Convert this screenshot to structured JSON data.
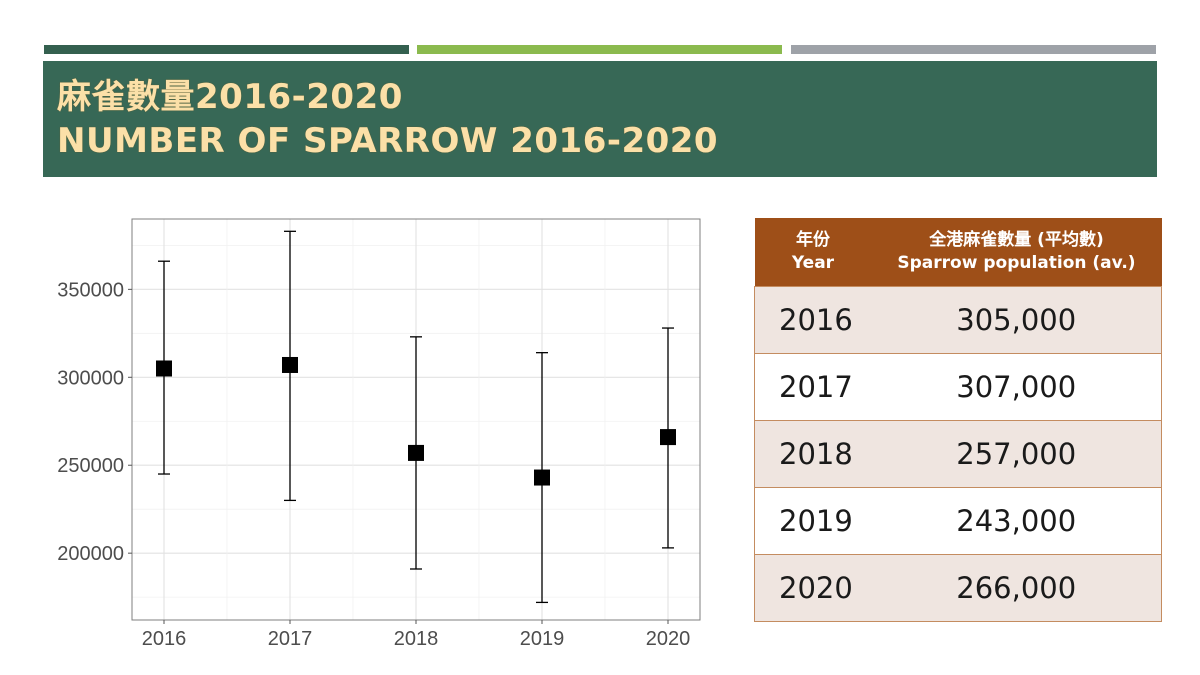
{
  "colors": {
    "accent_bar_1": "#34604f",
    "accent_bar_2": "#8bba4e",
    "accent_bar_3": "#9ea2a8",
    "banner": "#376856",
    "table_header": "#9e4f18",
    "table_row_shaded": "#efe5e0",
    "table_row_plain": "#ffffff"
  },
  "title": {
    "line1": "麻雀數量2016-2020",
    "line2": "NUMBER OF SPARROW 2016-2020"
  },
  "table": {
    "header_year_zh": "年份",
    "header_year_en": "Year",
    "header_pop_zh": "全港麻雀數量 (平均數)",
    "header_pop_en": "Sparrow population (av.)",
    "rows": [
      {
        "year": "2016",
        "population": "305,000"
      },
      {
        "year": "2017",
        "population": "307,000"
      },
      {
        "year": "2018",
        "population": "257,000"
      },
      {
        "year": "2019",
        "population": "243,000"
      },
      {
        "year": "2020",
        "population": "266,000"
      }
    ]
  },
  "chart_data": {
    "type": "scatter",
    "title": "",
    "xlabel": "",
    "ylabel": "",
    "categories": [
      "2016",
      "2017",
      "2018",
      "2019",
      "2020"
    ],
    "values": [
      305000,
      307000,
      257000,
      243000,
      266000
    ],
    "error_low": [
      245000,
      230000,
      191000,
      172000,
      203000
    ],
    "error_high": [
      366000,
      383000,
      323000,
      314000,
      328000
    ],
    "ylim": [
      162000,
      390000
    ],
    "yticks": [
      200000,
      250000,
      300000,
      350000
    ],
    "ytick_labels": [
      "200000",
      "250000",
      "300000",
      "350000"
    ],
    "grid": true,
    "legend": "none",
    "marker": "square",
    "marker_color": "#000000"
  }
}
